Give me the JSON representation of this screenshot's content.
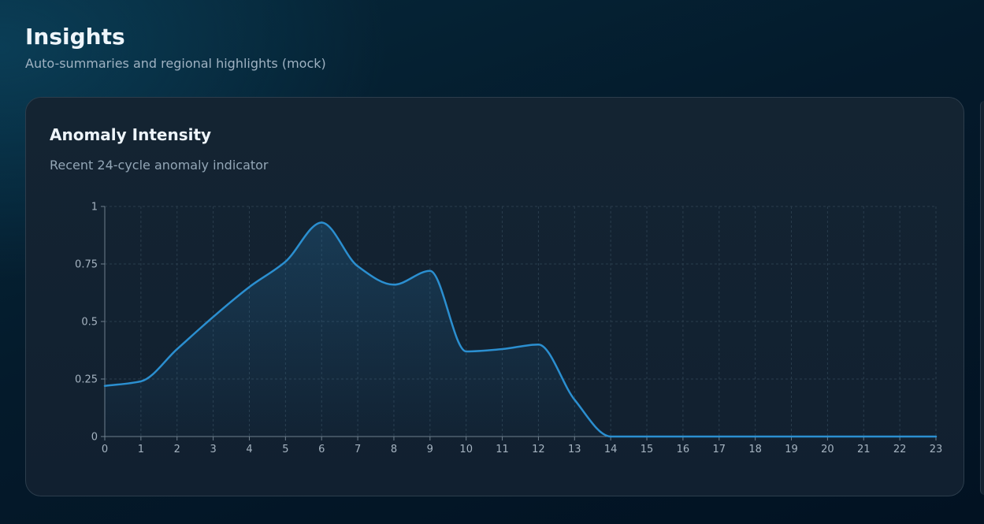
{
  "page": {
    "title": "Insights",
    "subtitle": "Auto-summaries and regional highlights (mock)"
  },
  "card": {
    "title": "Anomaly Intensity",
    "subtitle": "Recent 24-cycle anomaly indicator"
  },
  "colors": {
    "line": "#2b8fd0",
    "grid": "#2a3d4d",
    "axis": "#6f7f8d"
  },
  "chart_data": {
    "type": "area",
    "title": "Anomaly Intensity",
    "subtitle": "Recent 24-cycle anomaly indicator",
    "xlabel": "",
    "ylabel": "",
    "x": [
      0,
      1,
      2,
      3,
      4,
      5,
      6,
      7,
      8,
      9,
      10,
      11,
      12,
      13,
      14,
      15,
      16,
      17,
      18,
      19,
      20,
      21,
      22,
      23
    ],
    "series": [
      {
        "values": [
          0.22,
          0.24,
          0.38,
          0.52,
          0.65,
          0.76,
          0.93,
          0.74,
          0.66,
          0.72,
          0.37,
          0.38,
          0.4,
          0.16,
          0,
          0,
          0,
          0,
          0,
          0,
          0,
          0,
          0,
          0
        ]
      }
    ],
    "xlim": [
      0,
      23
    ],
    "ylim": [
      0,
      1
    ],
    "yticks": [
      0,
      0.25,
      0.5,
      0.75,
      1
    ],
    "ytick_labels": [
      "0",
      "0.25",
      "0.5",
      "0.75",
      "1"
    ],
    "xtick_labels": [
      "0",
      "1",
      "2",
      "3",
      "4",
      "5",
      "6",
      "7",
      "8",
      "9",
      "10",
      "11",
      "12",
      "13",
      "14",
      "15",
      "16",
      "17",
      "18",
      "19",
      "20",
      "21",
      "22",
      "23"
    ],
    "grid": true,
    "legend": "none"
  }
}
